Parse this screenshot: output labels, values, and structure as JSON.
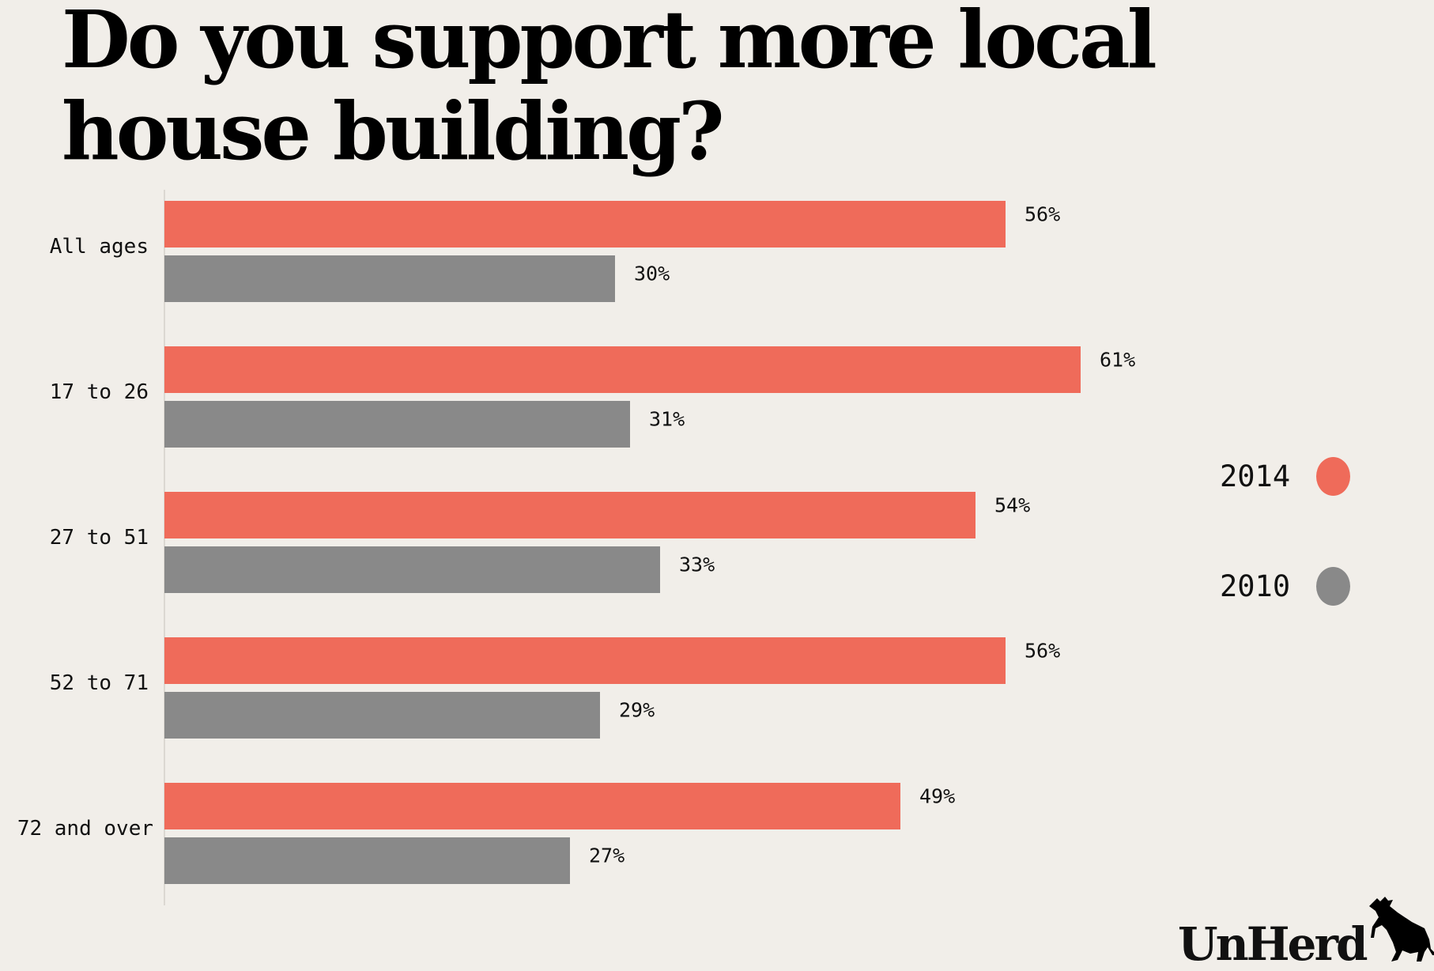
{
  "title": "Do you support more local house building?",
  "chart_data": {
    "type": "bar",
    "orientation": "horizontal",
    "title": "Do you support more local house building?",
    "categories": [
      "All ages",
      "17 to 26",
      "27 to 51",
      "52 to 71",
      "72 and over"
    ],
    "series": [
      {
        "name": "2014",
        "color": "#ef6b5a",
        "values": [
          56,
          61,
          54,
          56,
          49
        ],
        "labels": [
          "56%",
          "61%",
          "54%",
          "56%",
          "49%"
        ]
      },
      {
        "name": "2010",
        "color": "#898989",
        "values": [
          30,
          31,
          33,
          29,
          27
        ],
        "labels": [
          "30%",
          "31%",
          "33%",
          "29%",
          "27%"
        ]
      }
    ],
    "xlim": [
      0,
      61
    ],
    "unit": "%",
    "grid": false,
    "legend_position": "right"
  },
  "legend": [
    {
      "label": "2014",
      "color": "#ef6b5a"
    },
    {
      "label": "2010",
      "color": "#898989"
    }
  ],
  "logo": {
    "text": "UnHerd"
  }
}
